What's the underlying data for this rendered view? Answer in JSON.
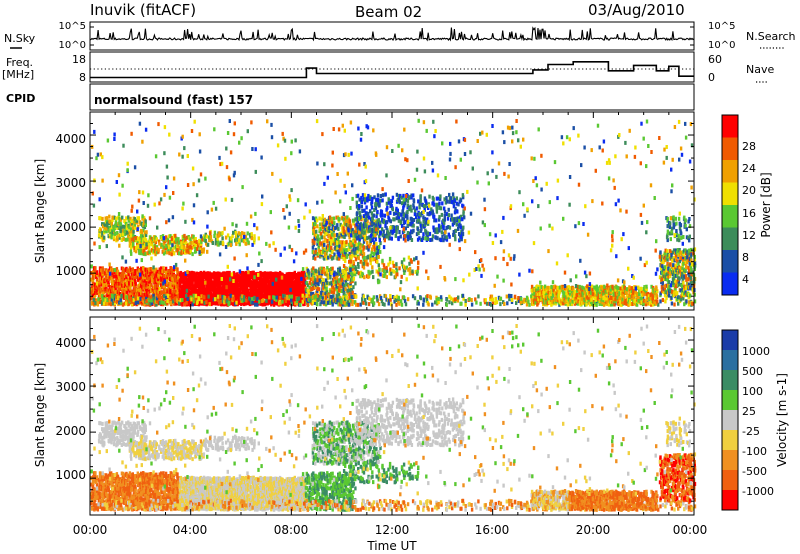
{
  "header": {
    "station": "Inuvik (fitACF)",
    "beam": "Beam 02",
    "date": "03/Aug/2010"
  },
  "left_labels": {
    "nsky": "N.Sky",
    "freq": "Freq.",
    "mhz": "[MHz]",
    "cpid": "CPID"
  },
  "right_labels": {
    "nsearch": "N.Search",
    "nave": "Nave"
  },
  "cpid_text": "normalsound (fast) 157",
  "colors": {
    "power": [
      "#0a2cf0",
      "#1b4fa6",
      "#3c8c5a",
      "#5ac832",
      "#f0e000",
      "#f0a000",
      "#f05a00",
      "#ff0000"
    ],
    "velocity": [
      "#1b3ca8",
      "#2a6fa0",
      "#3a8c64",
      "#5ac832",
      "#c8c8c8",
      "#f0d040",
      "#f09020",
      "#f06010",
      "#ff0000"
    ]
  },
  "chart_data": [
    {
      "type": "line",
      "name": "nsky-nsearch",
      "left_ticks": [
        "10^5",
        "10^0"
      ],
      "right_ticks": [
        "10^5",
        "10^0"
      ]
    },
    {
      "type": "line",
      "name": "freq-nave",
      "left_ticks": [
        "18",
        "8"
      ],
      "right_ticks": [
        "60",
        "0"
      ],
      "freq_steps": [
        [
          0,
          8.3
        ],
        [
          8.6,
          8.3
        ],
        [
          8.6,
          13.5
        ],
        [
          9.0,
          13.5
        ],
        [
          9.0,
          10.5
        ],
        [
          17.6,
          10.5
        ],
        [
          17.6,
          12.5
        ],
        [
          18.2,
          12.5
        ],
        [
          18.2,
          15.5
        ],
        [
          19.2,
          15.5
        ],
        [
          19.2,
          17
        ],
        [
          20.6,
          17
        ],
        [
          20.6,
          12
        ],
        [
          21.6,
          12
        ],
        [
          21.6,
          15
        ],
        [
          22.5,
          15
        ],
        [
          22.5,
          12
        ],
        [
          23.0,
          12
        ],
        [
          23.0,
          14.5
        ],
        [
          23.4,
          14.5
        ],
        [
          23.4,
          9
        ],
        [
          24,
          9
        ]
      ]
    },
    {
      "type": "heatmap",
      "name": "power",
      "ylabel": "Slant Range [km]",
      "yticks": [
        "1000",
        "2000",
        "3000",
        "4000"
      ],
      "ylim": [
        200,
        4500
      ],
      "colorbar_label": "Power [dB]",
      "colorbar_ticks": [
        "4",
        "8",
        "12",
        "16",
        "20",
        "24",
        "28"
      ]
    },
    {
      "type": "heatmap",
      "name": "velocity",
      "ylabel": "Slant Range [km]",
      "yticks": [
        "1000",
        "2000",
        "3000",
        "4000"
      ],
      "ylim": [
        200,
        4500
      ],
      "colorbar_label": "Velocity [m s-1]",
      "colorbar_ticks": [
        "1000",
        "500",
        "100",
        "25",
        "-25",
        "-100",
        "-500",
        "-1000"
      ],
      "xlabel": "Time UT",
      "xticks": [
        "00:00",
        "04:00",
        "08:00",
        "12:00",
        "16:00",
        "20:00",
        "00:00"
      ]
    }
  ]
}
